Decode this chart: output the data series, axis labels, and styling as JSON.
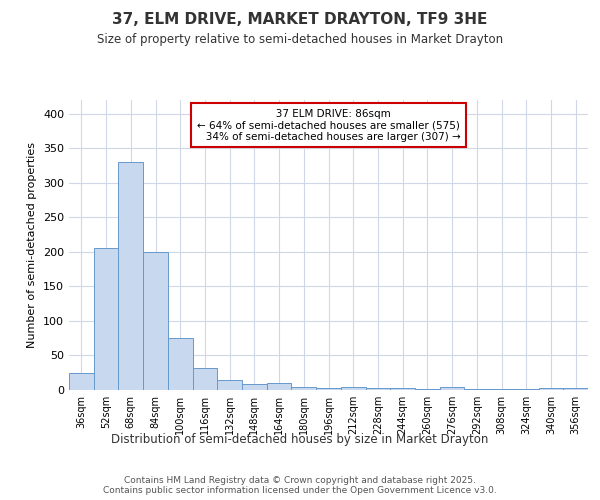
{
  "title": "37, ELM DRIVE, MARKET DRAYTON, TF9 3HE",
  "subtitle": "Size of property relative to semi-detached houses in Market Drayton",
  "xlabel": "Distribution of semi-detached houses by size in Market Drayton",
  "ylabel": "Number of semi-detached properties",
  "bar_color": "#c8d8ee",
  "bar_edge_color": "#6699cc",
  "property_label": "37 ELM DRIVE: 86sqm",
  "pct_smaller": 64,
  "count_smaller": 575,
  "pct_larger": 34,
  "count_larger": 307,
  "annotation_box_edge": "#cc0000",
  "categories": [
    "36sqm",
    "52sqm",
    "68sqm",
    "84sqm",
    "100sqm",
    "116sqm",
    "132sqm",
    "148sqm",
    "164sqm",
    "180sqm",
    "196sqm",
    "212sqm",
    "228sqm",
    "244sqm",
    "260sqm",
    "276sqm",
    "292sqm",
    "308sqm",
    "324sqm",
    "340sqm",
    "356sqm"
  ],
  "values": [
    25,
    205,
    330,
    200,
    75,
    32,
    15,
    8,
    10,
    4,
    3,
    4,
    3,
    3,
    2,
    4,
    2,
    1,
    1,
    3,
    3
  ],
  "property_line_x": 3.5,
  "ylim": [
    0,
    420
  ],
  "yticks": [
    0,
    50,
    100,
    150,
    200,
    250,
    300,
    350,
    400
  ],
  "bg_color": "#ffffff",
  "grid_color": "#d0d8e8",
  "footer_line1": "Contains HM Land Registry data © Crown copyright and database right 2025.",
  "footer_line2": "Contains public sector information licensed under the Open Government Licence v3.0."
}
